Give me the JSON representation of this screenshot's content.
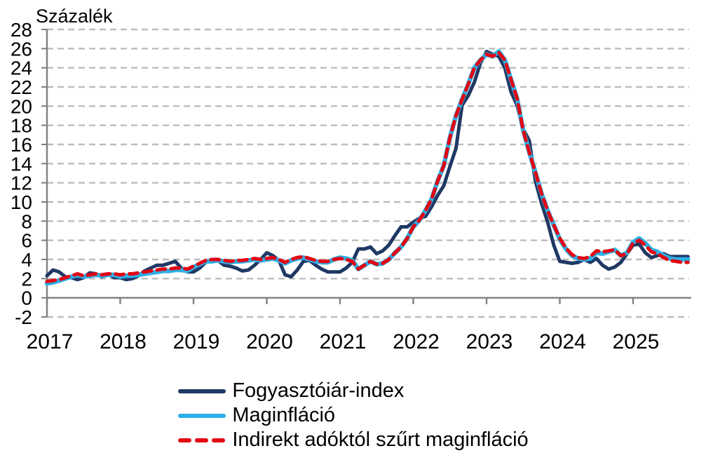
{
  "page": {
    "background": "#ffffff"
  },
  "chart_data": {
    "type": "line",
    "title": "Százalék",
    "xlabel": "",
    "ylabel": "Százalék",
    "x_unit": "month",
    "x_start": "2017-01",
    "x_end": "2025-10",
    "x_tick_labels": [
      "2017",
      "2018",
      "2019",
      "2020",
      "2021",
      "2022",
      "2023",
      "2024",
      "2025"
    ],
    "ylim": [
      -2,
      28
    ],
    "y_ticks": [
      -2,
      0,
      2,
      4,
      6,
      8,
      10,
      12,
      14,
      16,
      18,
      20,
      22,
      24,
      26,
      28
    ],
    "grid": "horizontal-dashed",
    "legend_position": "bottom",
    "axis_color": "#7f7f7f",
    "gridline_color": "#bdbdbd",
    "series": [
      {
        "id": "fogyasztoiar-index",
        "name": "Fogyasztóiár-index",
        "color": "#1f3864",
        "style": "solid",
        "values": [
          2.3,
          2.9,
          2.7,
          2.2,
          2.1,
          1.9,
          2.1,
          2.6,
          2.5,
          2.2,
          2.5,
          2.1,
          2.1,
          1.9,
          2.0,
          2.3,
          2.8,
          3.1,
          3.4,
          3.4,
          3.6,
          3.8,
          3.1,
          2.7,
          2.7,
          3.1,
          3.7,
          3.9,
          3.9,
          3.4,
          3.3,
          3.1,
          2.8,
          2.9,
          3.4,
          4.0,
          4.7,
          4.4,
          3.9,
          2.4,
          2.2,
          2.9,
          3.8,
          3.9,
          3.4,
          3.0,
          2.7,
          2.7,
          2.7,
          3.1,
          3.7,
          5.1,
          5.1,
          5.3,
          4.6,
          4.9,
          5.5,
          6.5,
          7.4,
          7.4,
          7.9,
          8.3,
          8.5,
          9.5,
          10.7,
          11.7,
          13.7,
          15.6,
          20.1,
          21.1,
          22.5,
          24.5,
          25.7,
          25.4,
          25.2,
          24.0,
          21.5,
          20.1,
          17.6,
          16.4,
          12.2,
          9.9,
          7.9,
          5.5,
          3.8,
          3.7,
          3.6,
          3.7,
          4.0,
          3.7,
          4.1,
          3.4,
          3.0,
          3.2,
          3.7,
          4.6,
          5.5,
          5.6,
          4.7,
          4.2,
          4.4,
          4.6,
          4.3,
          4.3,
          4.3,
          4.3
        ]
      },
      {
        "id": "maginflacio",
        "name": "Maginfláció",
        "color": "#2eb0e6",
        "style": "solid",
        "values": [
          1.5,
          1.6,
          1.8,
          2.0,
          2.2,
          2.4,
          2.2,
          2.3,
          2.4,
          2.3,
          2.4,
          2.4,
          2.2,
          2.3,
          2.3,
          2.4,
          2.5,
          2.6,
          2.7,
          2.8,
          2.8,
          2.9,
          2.9,
          2.8,
          3.2,
          3.5,
          3.8,
          3.8,
          3.9,
          3.8,
          3.7,
          3.8,
          3.8,
          3.9,
          4.0,
          3.9,
          4.0,
          4.1,
          3.9,
          3.6,
          3.9,
          4.1,
          4.2,
          4.0,
          3.8,
          3.7,
          3.7,
          4.0,
          4.2,
          4.1,
          3.9,
          3.0,
          3.4,
          3.8,
          3.5,
          3.6,
          4.0,
          4.7,
          5.3,
          6.2,
          7.4,
          8.1,
          9.1,
          10.3,
          12.2,
          13.8,
          16.7,
          19.0,
          20.7,
          22.3,
          24.0,
          24.8,
          25.4,
          25.2,
          25.7,
          24.8,
          22.8,
          20.8,
          17.5,
          15.2,
          13.1,
          10.9,
          9.1,
          7.6,
          6.1,
          5.1,
          4.4,
          4.1,
          4.0,
          4.1,
          4.7,
          4.6,
          4.8,
          5.0,
          4.4,
          4.7,
          5.8,
          6.2,
          5.7,
          5.0,
          4.8,
          4.4,
          4.1,
          4.0,
          4.0,
          4.0
        ]
      },
      {
        "id": "indirekt-adoktol-szurt-maginflacio",
        "name": "Indirekt adóktól szűrt maginfláció",
        "color": "#e30613",
        "style": "dashed",
        "values": [
          1.7,
          1.8,
          1.9,
          2.1,
          2.3,
          2.5,
          2.3,
          2.4,
          2.5,
          2.4,
          2.5,
          2.5,
          2.4,
          2.5,
          2.5,
          2.6,
          2.7,
          2.8,
          2.9,
          3.0,
          3.0,
          3.1,
          3.1,
          3.0,
          3.3,
          3.6,
          3.9,
          4.0,
          4.0,
          3.9,
          3.8,
          3.9,
          3.9,
          4.0,
          4.1,
          4.0,
          4.1,
          4.2,
          4.0,
          3.7,
          4.0,
          4.2,
          4.3,
          4.1,
          3.9,
          3.8,
          3.8,
          4.0,
          4.1,
          4.0,
          3.8,
          3.0,
          3.4,
          3.8,
          3.5,
          3.6,
          4.0,
          4.7,
          5.3,
          6.2,
          7.4,
          8.1,
          9.1,
          10.3,
          12.2,
          13.8,
          16.7,
          19.0,
          20.7,
          22.3,
          24.0,
          24.8,
          25.4,
          25.2,
          25.6,
          24.8,
          22.8,
          20.8,
          17.5,
          15.2,
          13.1,
          10.9,
          9.1,
          7.6,
          6.2,
          5.2,
          4.5,
          4.2,
          4.1,
          4.3,
          4.9,
          4.8,
          4.9,
          5.0,
          4.4,
          4.6,
          5.7,
          6.0,
          5.5,
          4.8,
          4.6,
          4.2,
          3.9,
          3.8,
          3.7,
          3.7
        ]
      }
    ]
  }
}
